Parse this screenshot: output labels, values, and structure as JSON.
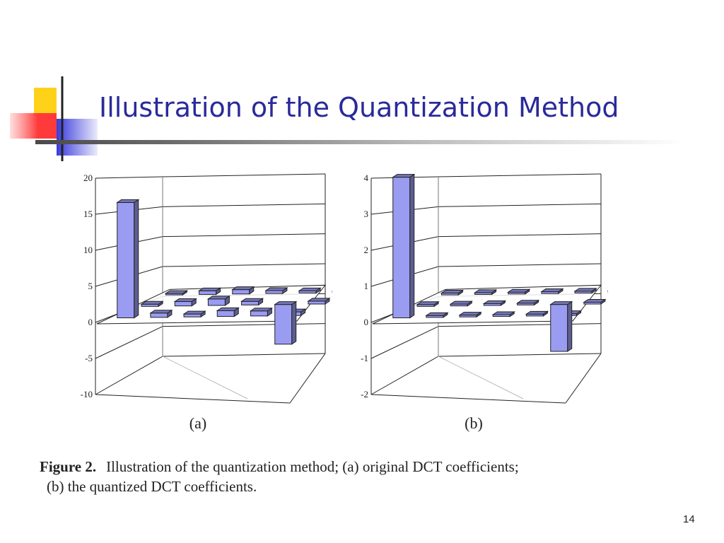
{
  "slide": {
    "title": "Illustration of the Quantization Method",
    "page_number": "14"
  },
  "caption": {
    "figure_label": "Figure 2.",
    "line1": "Illustration of the quantization method; (a) original DCT coefficients;",
    "line2": "(b) the quantized DCT coefficients."
  },
  "chart_data": [
    {
      "type": "bar",
      "subtitle": "(a)",
      "ylim": [
        -10,
        20
      ],
      "yticks": [
        20,
        15,
        10,
        5,
        0,
        -5,
        -10
      ],
      "grid": true,
      "series_color": "#9a9cf2",
      "bars": [
        {
          "row": 0,
          "col": 0,
          "value": 16
        },
        {
          "row": 0,
          "col": 1,
          "value": 0.6
        },
        {
          "row": 0,
          "col": 2,
          "value": 0.4
        },
        {
          "row": 0,
          "col": 3,
          "value": 0.8
        },
        {
          "row": 0,
          "col": 4,
          "value": 0.7
        },
        {
          "row": 0,
          "col": 5,
          "value": 0.5
        },
        {
          "row": 1,
          "col": 0,
          "value": 0.3
        },
        {
          "row": 1,
          "col": 1,
          "value": 0.6
        },
        {
          "row": 1,
          "col": 2,
          "value": 0.9
        },
        {
          "row": 1,
          "col": 3,
          "value": 0.5
        },
        {
          "row": 1,
          "col": 4,
          "value": -5.5
        },
        {
          "row": 1,
          "col": 5,
          "value": 0.4
        },
        {
          "row": 2,
          "col": 0,
          "value": 0.2
        },
        {
          "row": 2,
          "col": 1,
          "value": 0.5
        },
        {
          "row": 2,
          "col": 2,
          "value": 0.6
        },
        {
          "row": 2,
          "col": 3,
          "value": 0.4
        },
        {
          "row": 2,
          "col": 4,
          "value": 0.3
        },
        {
          "row": 2,
          "col": 5,
          "value": 0.2
        }
      ]
    },
    {
      "type": "bar",
      "subtitle": "(b)",
      "ylim": [
        -2,
        4
      ],
      "yticks": [
        4,
        3,
        2,
        1,
        0,
        -1,
        -2
      ],
      "grid": true,
      "series_color": "#9a9cf2",
      "bars": [
        {
          "row": 0,
          "col": 0,
          "value": 3.9
        },
        {
          "row": 0,
          "col": 1,
          "value": 0.05
        },
        {
          "row": 0,
          "col": 2,
          "value": 0.05
        },
        {
          "row": 0,
          "col": 3,
          "value": 0.05
        },
        {
          "row": 0,
          "col": 4,
          "value": 0.05
        },
        {
          "row": 0,
          "col": 5,
          "value": 0.05
        },
        {
          "row": 1,
          "col": 0,
          "value": 0.05
        },
        {
          "row": 1,
          "col": 1,
          "value": 0.05
        },
        {
          "row": 1,
          "col": 2,
          "value": 0.05
        },
        {
          "row": 1,
          "col": 3,
          "value": 0.05
        },
        {
          "row": 1,
          "col": 4,
          "value": -1.3
        },
        {
          "row": 1,
          "col": 5,
          "value": 0.05
        },
        {
          "row": 2,
          "col": 0,
          "value": 0.05
        },
        {
          "row": 2,
          "col": 1,
          "value": 0.05
        },
        {
          "row": 2,
          "col": 2,
          "value": 0.05
        },
        {
          "row": 2,
          "col": 3,
          "value": 0.05
        },
        {
          "row": 2,
          "col": 4,
          "value": 0.05
        },
        {
          "row": 2,
          "col": 5,
          "value": 0.05
        }
      ]
    }
  ]
}
